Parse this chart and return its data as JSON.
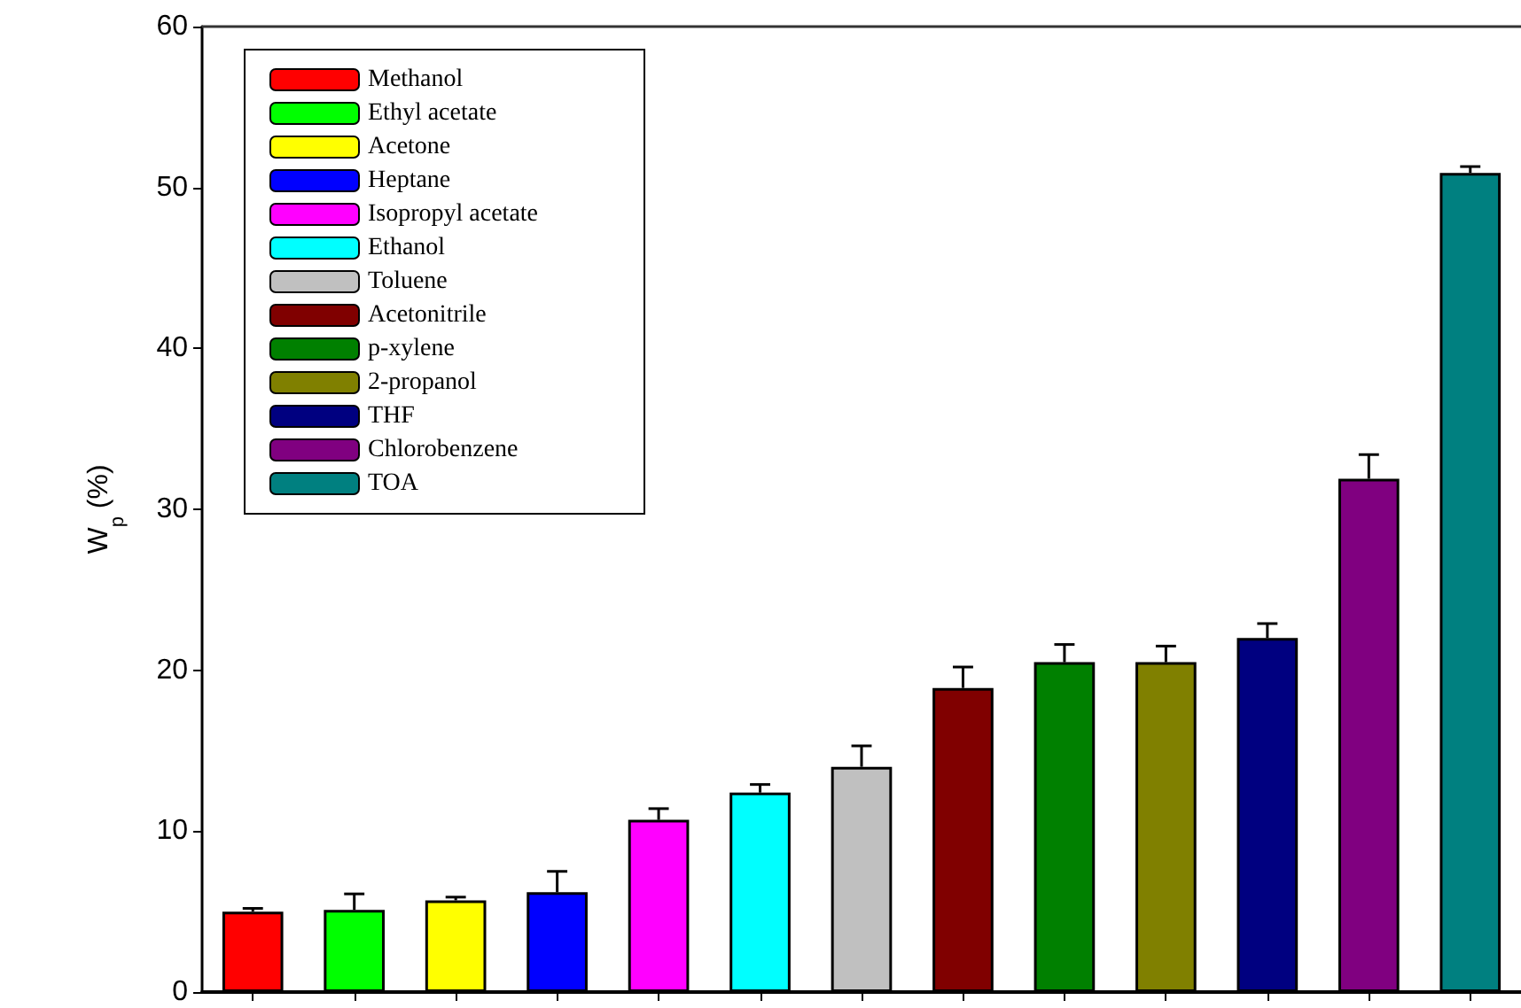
{
  "chart_data": {
    "type": "bar",
    "ylabel": "W$_{p}$ (%)",
    "categories": [
      null,
      null,
      null,
      null,
      null,
      null,
      null,
      null,
      null,
      null,
      null,
      null,
      null
    ],
    "series": [
      {
        "name": "Methanol",
        "color": "#ff0000",
        "values": [
          5.0,
          null,
          null,
          null,
          null,
          null,
          null,
          null,
          null,
          null,
          null,
          null,
          null
        ],
        "errors": [
          [
            5.0,
            5.2
          ],
          null,
          null,
          null,
          null,
          null,
          null,
          null,
          null,
          null,
          null,
          null,
          null
        ]
      },
      {
        "name": "Ethyl acetate",
        "color": "#00ff00",
        "values": [
          null,
          5.1,
          null,
          null,
          null,
          null,
          null,
          null,
          null,
          null,
          null,
          null,
          null
        ],
        "errors": [
          null,
          [
            5.1,
            6.1
          ],
          null,
          null,
          null,
          null,
          null,
          null,
          null,
          null,
          null,
          null,
          null
        ]
      },
      {
        "name": "Acetone",
        "color": "#ffff00",
        "values": [
          null,
          null,
          5.7,
          null,
          null,
          null,
          null,
          null,
          null,
          null,
          null,
          null,
          null
        ],
        "errors": [
          null,
          null,
          [
            5.7,
            5.9
          ],
          null,
          null,
          null,
          null,
          null,
          null,
          null,
          null,
          null,
          null
        ]
      },
      {
        "name": "Heptane",
        "color": "#0000ff",
        "values": [
          null,
          null,
          null,
          6.2,
          null,
          null,
          null,
          null,
          null,
          null,
          null,
          null,
          null
        ],
        "errors": [
          null,
          null,
          null,
          [
            6.2,
            7.5
          ],
          null,
          null,
          null,
          null,
          null,
          null,
          null,
          null,
          null
        ]
      },
      {
        "name": "Isopropyl acetate",
        "color": "#ff00ff",
        "values": [
          null,
          null,
          null,
          null,
          10.7,
          null,
          null,
          null,
          null,
          null,
          null,
          null,
          null
        ],
        "errors": [
          null,
          null,
          null,
          null,
          [
            10.7,
            11.4
          ],
          null,
          null,
          null,
          null,
          null,
          null,
          null,
          null
        ]
      },
      {
        "name": "Ethanol",
        "color": "#00ffff",
        "values": [
          null,
          null,
          null,
          null,
          null,
          12.4,
          null,
          null,
          null,
          null,
          null,
          null,
          null
        ],
        "errors": [
          null,
          null,
          null,
          null,
          null,
          [
            12.4,
            12.9
          ],
          null,
          null,
          null,
          null,
          null,
          null,
          null
        ]
      },
      {
        "name": "Toluene",
        "color": "#c0c0c0",
        "values": [
          null,
          null,
          null,
          null,
          null,
          null,
          14.0,
          null,
          null,
          null,
          null,
          null,
          null
        ],
        "errors": [
          null,
          null,
          null,
          null,
          null,
          null,
          [
            14.0,
            15.3
          ],
          null,
          null,
          null,
          null,
          null,
          null
        ]
      },
      {
        "name": "Acetonitrile",
        "color": "#800000",
        "values": [
          null,
          null,
          null,
          null,
          null,
          null,
          null,
          18.9,
          null,
          null,
          null,
          null,
          null
        ],
        "errors": [
          null,
          null,
          null,
          null,
          null,
          null,
          null,
          [
            18.9,
            20.2
          ],
          null,
          null,
          null,
          null,
          null
        ]
      },
      {
        "name": "p-xylene",
        "color": "#008000",
        "values": [
          null,
          null,
          null,
          null,
          null,
          null,
          null,
          null,
          20.5,
          null,
          null,
          null,
          null
        ],
        "errors": [
          null,
          null,
          null,
          null,
          null,
          null,
          null,
          null,
          [
            20.5,
            21.6
          ],
          null,
          null,
          null,
          null
        ]
      },
      {
        "name": "2-propanol",
        "color": "#808000",
        "values": [
          null,
          null,
          null,
          null,
          null,
          null,
          null,
          null,
          null,
          20.5,
          null,
          null,
          null
        ],
        "errors": [
          null,
          null,
          null,
          null,
          null,
          null,
          null,
          null,
          null,
          [
            20.5,
            21.5
          ],
          null,
          null,
          null
        ]
      },
      {
        "name": "THF",
        "color": "#000080",
        "values": [
          null,
          null,
          null,
          null,
          null,
          null,
          null,
          null,
          null,
          null,
          22.0,
          null,
          null
        ],
        "errors": [
          null,
          null,
          null,
          null,
          null,
          null,
          null,
          null,
          null,
          null,
          [
            22.0,
            22.9
          ],
          null,
          null
        ]
      },
      {
        "name": "Chlorobenzene",
        "color": "#800080",
        "values": [
          null,
          null,
          null,
          null,
          null,
          null,
          null,
          null,
          null,
          null,
          null,
          31.9,
          null
        ],
        "errors": [
          null,
          null,
          null,
          null,
          null,
          null,
          null,
          null,
          null,
          null,
          null,
          [
            31.9,
            33.4
          ],
          null
        ]
      },
      {
        "name": "TOA",
        "color": "#008080",
        "values": [
          null,
          null,
          null,
          null,
          null,
          null,
          null,
          null,
          null,
          null,
          null,
          null,
          50.9
        ],
        "errors": [
          null,
          null,
          null,
          null,
          null,
          null,
          null,
          null,
          null,
          null,
          null,
          null,
          [
            50.9,
            51.3
          ]
        ]
      }
    ],
    "ylim": [
      0,
      60
    ],
    "yticks": [
      0,
      10,
      20,
      30,
      40,
      50,
      60
    ],
    "grid": false,
    "legend": "top left",
    "tick_labels": "y"
  }
}
